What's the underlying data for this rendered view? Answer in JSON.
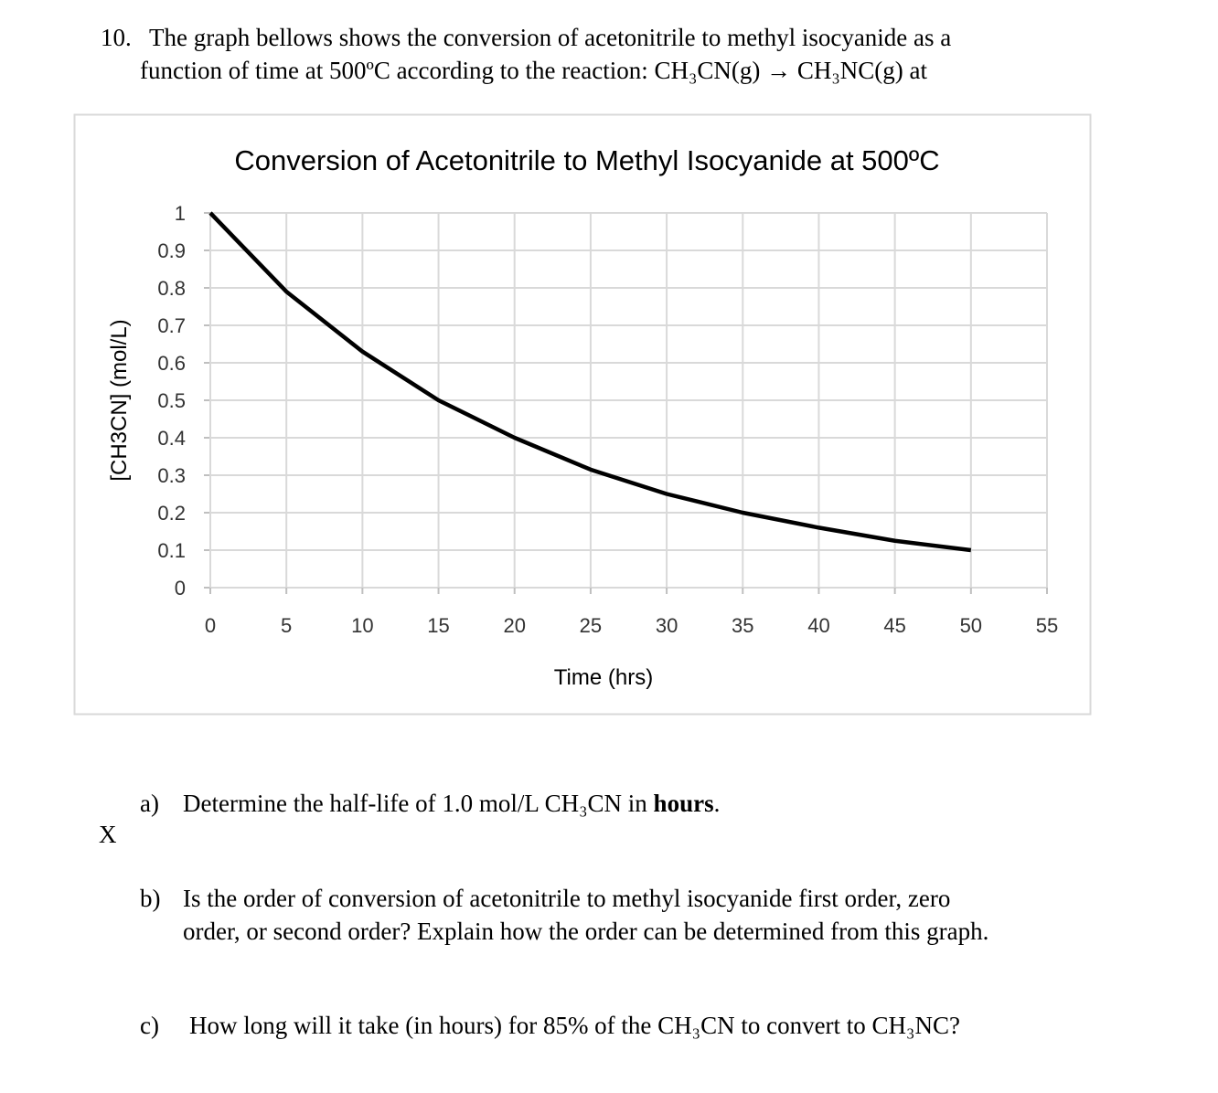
{
  "question": {
    "number": "10.",
    "lines": [
      "The graph bellows shows the conversion of acetonitrile to methyl isocyanide as a",
      "function of time at 500ºC according to the reaction:  CH₃CN(g) → CH₃NC(g) at"
    ]
  },
  "chart_data": {
    "type": "line",
    "title": "Conversion of Acetonitrile to Methyl Isocyanide at 500ºC",
    "x_label": "Time (hrs)",
    "y_label": "[CH3CN] (mol/L)",
    "x": [
      0,
      5,
      10,
      15,
      20,
      25,
      30,
      35,
      40,
      45,
      50
    ],
    "values": [
      1,
      0.79,
      0.63,
      0.5,
      0.4,
      0.315,
      0.25,
      0.2,
      0.16,
      0.125,
      0.1
    ],
    "color": "#000000",
    "xlim": [
      0,
      55
    ],
    "xticks": [
      0,
      5,
      10,
      15,
      20,
      25,
      30,
      35,
      40,
      45,
      50,
      55
    ],
    "ylim": [
      0,
      1
    ],
    "yticks": [
      0,
      0.1,
      0.2,
      0.3,
      0.4,
      0.5,
      0.6,
      0.7,
      0.8,
      0.9,
      1
    ],
    "grid": true
  },
  "stray_mark": "X",
  "parts": [
    {
      "label": "a)",
      "lines": [
        [
          "Determine the half-life of 1.0 mol/L CH₃CN in ",
          "hours",
          "."
        ]
      ]
    },
    {
      "label": "b)",
      "lines": [
        [
          "Is the order of conversion of acetonitrile to methyl isocyanide first order, zero"
        ],
        [
          "order, or second order?  Explain how the order can be determined from this graph."
        ]
      ]
    },
    {
      "label": "c)",
      "lines": [
        [
          "How long will it take (in hours) for 85% of the CH₃CN to convert to CH₃NC?"
        ]
      ]
    }
  ]
}
